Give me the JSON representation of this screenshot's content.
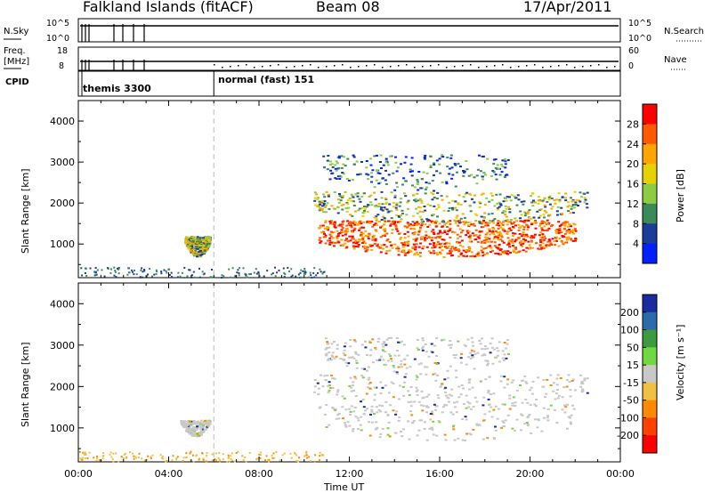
{
  "header": {
    "station": "Falkland Islands (fitACF)",
    "beam": "Beam 08",
    "date": "17/Apr/2011"
  },
  "top_panels": {
    "nsky_label": "N.Sky",
    "nsky_ticks": [
      "10^5",
      "10^0"
    ],
    "nsearch_label": "N.Search",
    "nsearch_ticks": [
      "10^5",
      "10^0"
    ],
    "freq_label": "Freq.",
    "freq_unit": "[MHz]",
    "freq_ticks": [
      "18",
      "8"
    ],
    "nave_label": "Nave",
    "nave_ticks": [
      "60",
      "0"
    ],
    "cpid_label": "CPID",
    "cpid_modes": [
      {
        "name": "themis 3300",
        "start_hour": 0
      },
      {
        "name": "normal (fast) 151",
        "start_hour": 6
      }
    ]
  },
  "chart_data": [
    {
      "type": "heatmap",
      "name": "power-panel",
      "ylabel": "Slant Range [km]",
      "xlabel": "",
      "xlim": [
        0,
        24
      ],
      "ylim": [
        180,
        4500
      ],
      "x_ticks": [
        "00:00",
        "04:00",
        "08:00",
        "12:00",
        "16:00",
        "20:00",
        "00:00"
      ],
      "y_ticks": [
        1000,
        2000,
        3000,
        4000
      ],
      "colorbar": {
        "label": "Power [dB]",
        "ticks": [
          "28",
          "24",
          "20",
          "16",
          "12",
          "8",
          "4"
        ],
        "colors": [
          "#ff0000",
          "#ff5a00",
          "#ffa500",
          "#e6d200",
          "#8ccc44",
          "#3a8a5a",
          "#1a3c9a",
          "#0020ff"
        ]
      },
      "regions": [
        {
          "x0": 4.7,
          "x1": 5.8,
          "y0": 700,
          "y1": 1200,
          "level": "mid"
        },
        {
          "x0": 10.6,
          "x1": 22.0,
          "y0": 700,
          "y1": 1600,
          "level": "high"
        },
        {
          "x0": 10.4,
          "x1": 22.5,
          "y0": 1500,
          "y1": 2300,
          "level": "mid"
        },
        {
          "x0": 10.8,
          "x1": 19.0,
          "y0": 2300,
          "y1": 3200,
          "level": "low"
        }
      ]
    },
    {
      "type": "heatmap",
      "name": "velocity-panel",
      "ylabel": "Slant Range [km]",
      "xlabel": "Time UT",
      "xlim": [
        0,
        24
      ],
      "ylim": [
        180,
        4500
      ],
      "x_ticks": [
        "00:00",
        "04:00",
        "08:00",
        "12:00",
        "16:00",
        "20:00",
        "00:00"
      ],
      "y_ticks": [
        1000,
        2000,
        3000,
        4000
      ],
      "colorbar": {
        "label": "Velocity [m s⁻¹]",
        "ticks": [
          "200",
          "100",
          "50",
          "15",
          "-15",
          "-50",
          "-100",
          "-200"
        ],
        "colors": [
          "#1a2aa0",
          "#2d6aa8",
          "#3f9a3f",
          "#70d840",
          "#c8c8c8",
          "#f0c040",
          "#ff8a00",
          "#ff4000",
          "#ff0000"
        ]
      },
      "regions": [
        {
          "x0": 4.5,
          "x1": 5.8,
          "y0": 800,
          "y1": 1200,
          "level": "gray"
        },
        {
          "x0": 10.6,
          "x1": 22.0,
          "y0": 700,
          "y1": 1600,
          "level": "gray"
        },
        {
          "x0": 10.4,
          "x1": 22.5,
          "y0": 1500,
          "y1": 2300,
          "level": "gray"
        },
        {
          "x0": 10.8,
          "x1": 19.0,
          "y0": 2300,
          "y1": 3200,
          "level": "gray"
        }
      ]
    }
  ]
}
